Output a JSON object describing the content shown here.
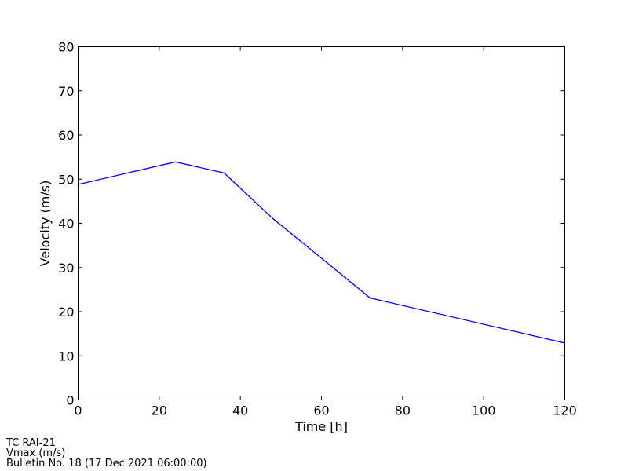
{
  "chart_data": {
    "type": "line",
    "title": "",
    "xlabel": "Time [h]",
    "ylabel": "Velocity (m/s)",
    "xlim": [
      0,
      120
    ],
    "ylim": [
      0,
      80
    ],
    "xticks": [
      0,
      20,
      40,
      60,
      80,
      100,
      120
    ],
    "yticks": [
      0,
      10,
      20,
      30,
      40,
      50,
      60,
      70,
      80
    ],
    "grid": false,
    "legend": "none",
    "series": [
      {
        "color": "#0000ff",
        "x": [
          0,
          24,
          36,
          48,
          72,
          120
        ],
        "y": [
          48.8,
          53.9,
          51.4,
          41.1,
          23.1,
          12.9
        ]
      }
    ]
  },
  "footer": {
    "line1": "TC RAI-21",
    "line2": "Vmax (m/s)",
    "line3": "Bulletin No. 18 (17 Dec 2021  06:00:00)"
  }
}
